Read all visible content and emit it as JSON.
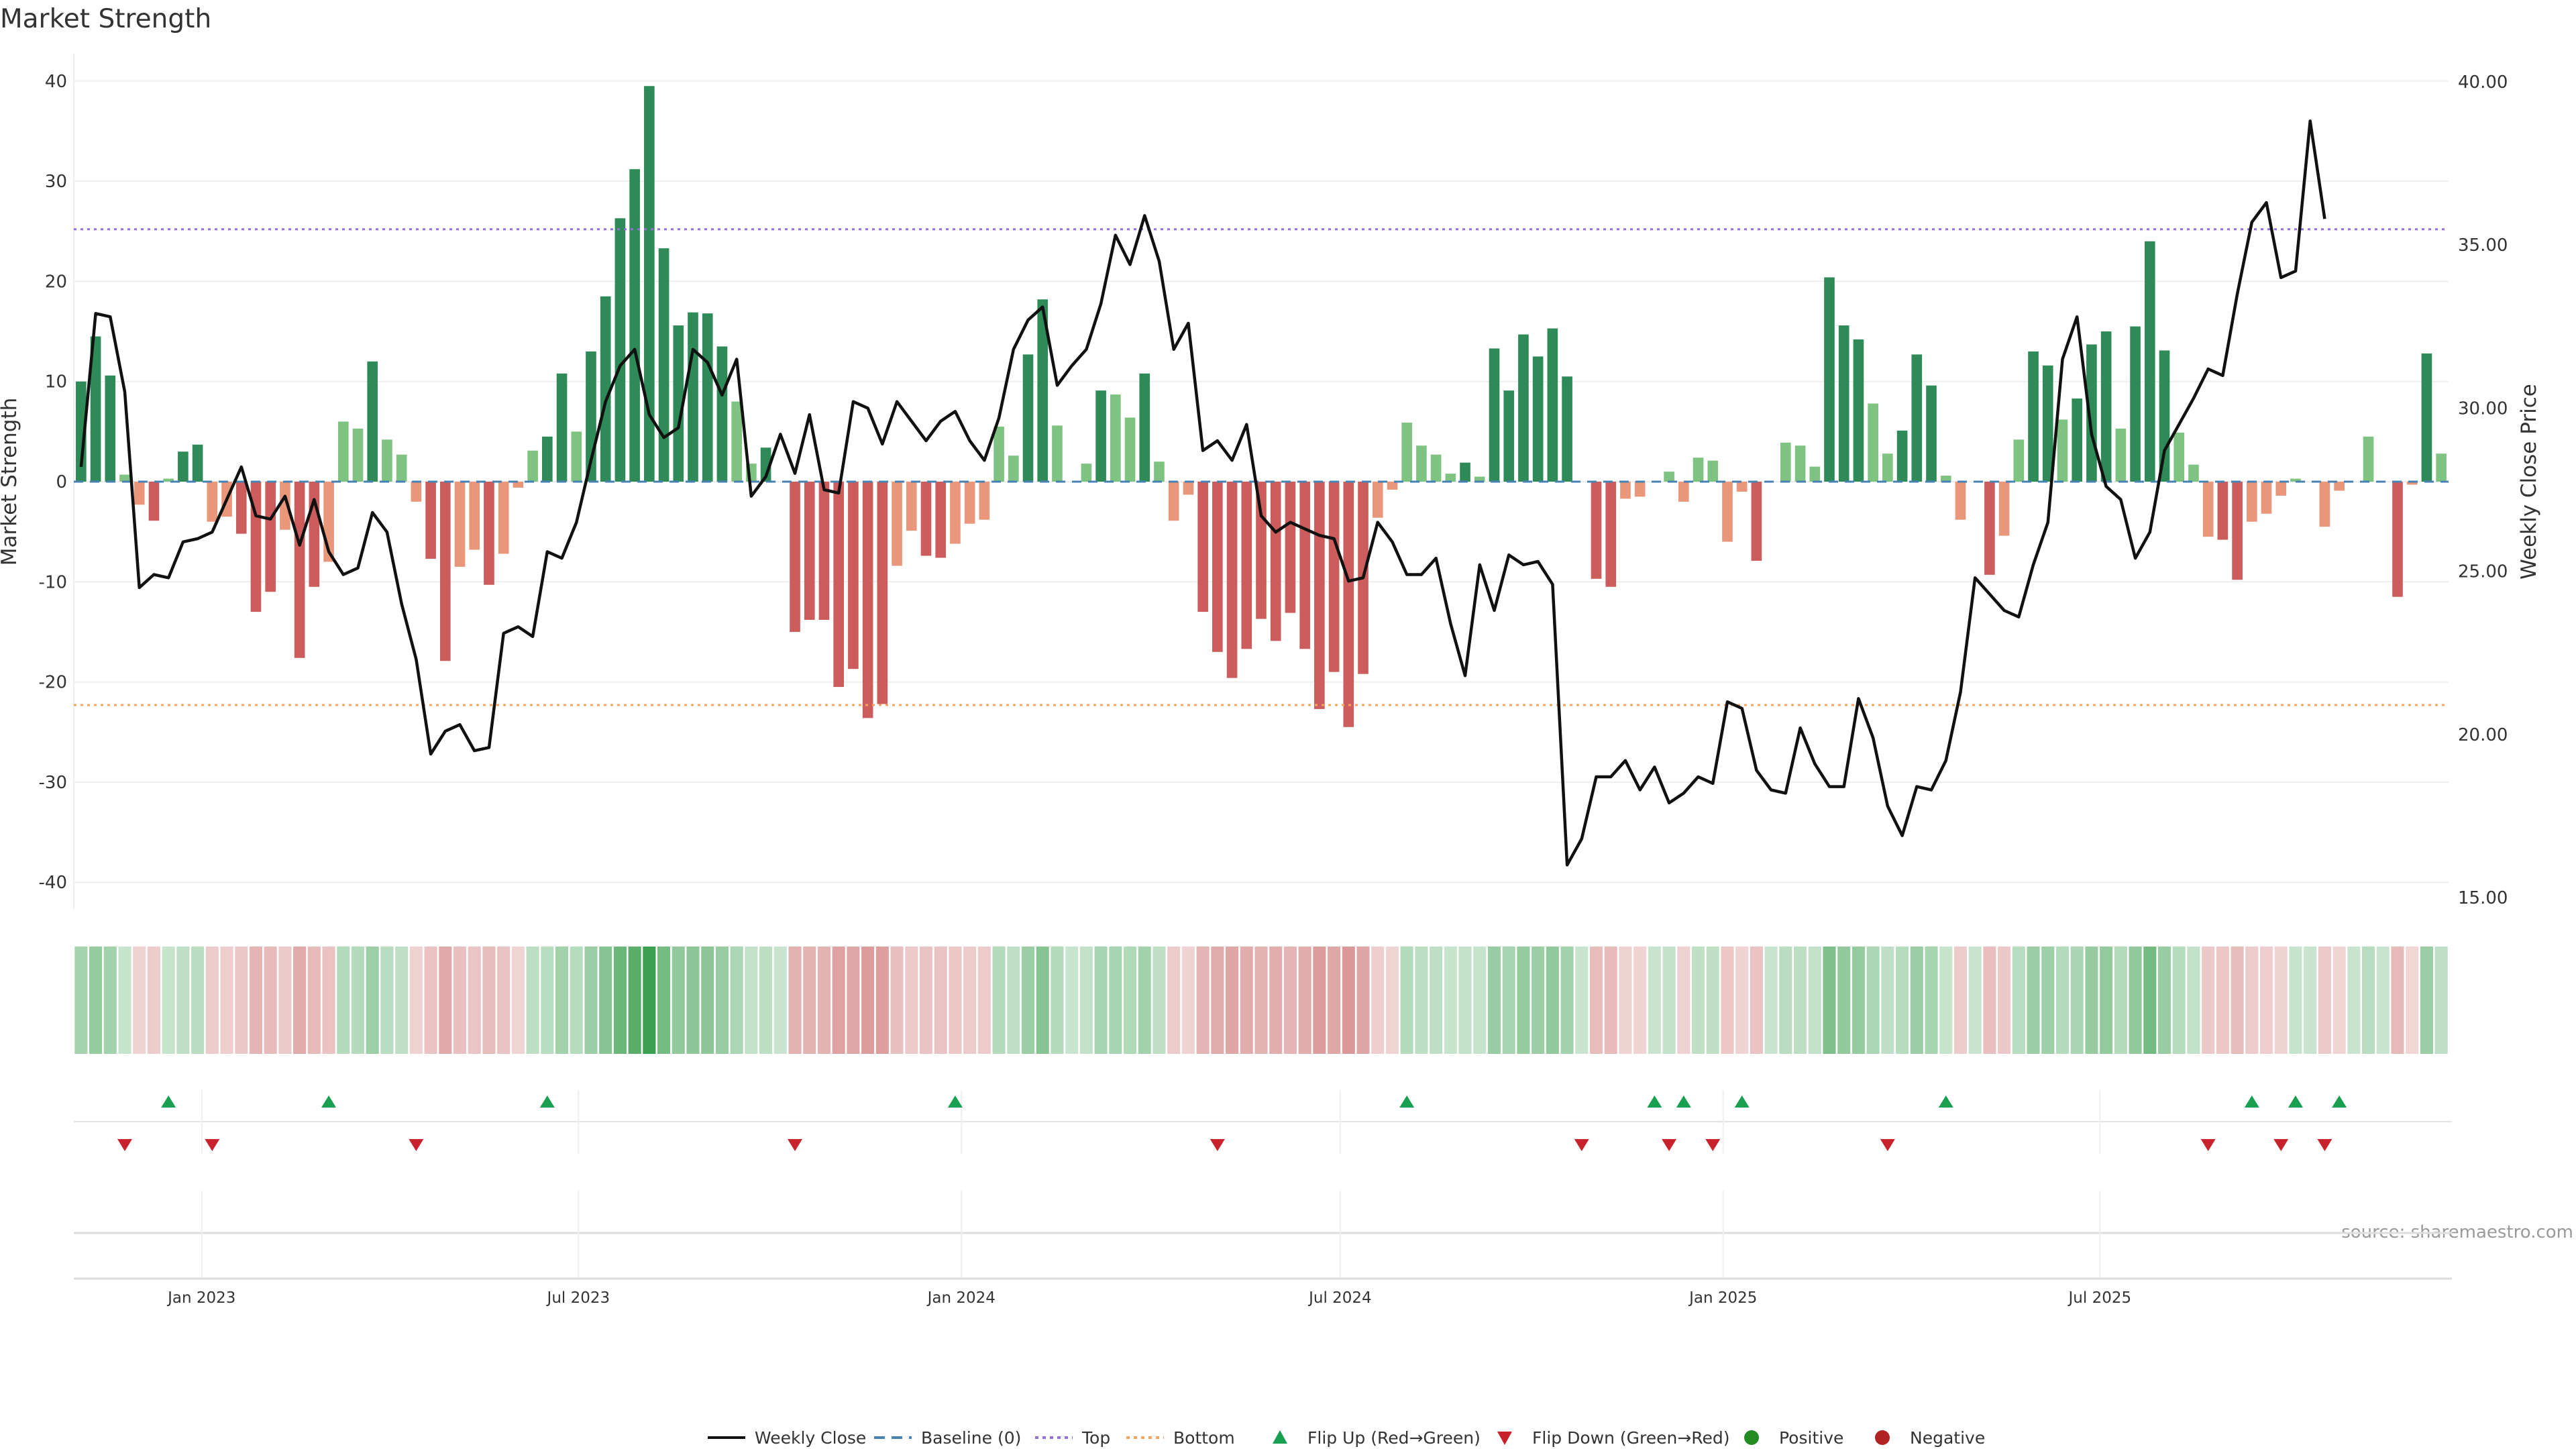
{
  "chart_data": {
    "type": "bar",
    "title": "Market Strength",
    "ylabel": "Market Strength",
    "y2label": "Weekly Close Price",
    "source": "source: sharemaestro.com",
    "ylim": [
      -43,
      43
    ],
    "y2lim": [
      14.5,
      41
    ],
    "x_start": "2022-11-04",
    "yticks": [
      "40",
      "30",
      "20",
      "10",
      "0",
      "-10",
      "-20",
      "-30",
      "-40"
    ],
    "y2ticks": [
      "40.00",
      "35.00",
      "30.00",
      "25.00",
      "20.00",
      "15.00"
    ],
    "xticks": [
      {
        "date": "2023-01-01",
        "label": "Jan 2023"
      },
      {
        "date": "2023-07-01",
        "label": "Jul 2023"
      },
      {
        "date": "2024-01-01",
        "label": "Jan 2024"
      },
      {
        "date": "2024-07-01",
        "label": "Jul 2024"
      },
      {
        "date": "2025-01-01",
        "label": "Jan 2025"
      },
      {
        "date": "2025-07-01",
        "label": "Jul 2025"
      }
    ],
    "top_line": 25.2,
    "bottom_line": -22.3,
    "strength": [
      10,
      14.5,
      10.6,
      0.7,
      -2.3,
      -3.9,
      0.3,
      3.0,
      3.7,
      -4.0,
      -3.5,
      -5.2,
      -13.0,
      -11.0,
      -4.8,
      -17.6,
      -10.5,
      -8.0,
      6.0,
      5.3,
      12.0,
      4.2,
      2.7,
      -2.0,
      -7.7,
      -17.9,
      -8.5,
      -6.8,
      -10.3,
      -7.2,
      -0.6,
      3.1,
      4.5,
      10.8,
      5.0,
      13.0,
      18.5,
      26.3,
      31.2,
      39.5,
      23.3,
      15.6,
      16.9,
      16.8,
      13.5,
      8.0,
      1.8,
      3.4,
      0,
      -15.0,
      -13.8,
      -13.8,
      -20.5,
      -18.7,
      -23.6,
      -22.2,
      -8.4,
      -4.9,
      -7.4,
      -7.6,
      -6.2,
      -4.2,
      -3.8,
      5.5,
      2.6,
      12.7,
      18.2,
      5.6,
      0,
      1.8,
      9.1,
      8.7,
      6.4,
      10.8,
      2.0,
      -3.9,
      -1.3,
      -13.0,
      -17.0,
      -19.6,
      -16.7,
      -13.7,
      -15.9,
      -13.1,
      -16.7,
      -22.7,
      -19.0,
      -24.5,
      -19.2,
      -3.6,
      -0.8,
      5.9,
      3.6,
      2.7,
      0.8,
      1.9,
      0.5,
      13.3,
      9.1,
      14.7,
      12.5,
      15.3,
      10.5,
      0,
      -9.7,
      -10.5,
      -1.7,
      -1.5,
      0,
      1.0,
      -2.0,
      2.4,
      2.1,
      -6.0,
      -1.0,
      -7.9,
      0,
      3.9,
      3.6,
      1.5,
      20.4,
      15.6,
      14.2,
      7.8,
      2.8,
      5.1,
      12.7,
      9.6,
      0.6,
      -3.8,
      0,
      -9.3,
      -5.4,
      4.2,
      13.0,
      11.6,
      6.2,
      8.3,
      13.7,
      15.0,
      5.3,
      15.5,
      24.0,
      13.1,
      4.9,
      1.7,
      -5.5,
      -5.8,
      -9.8,
      -4.0,
      -3.2,
      -1.4,
      0.3,
      0,
      -4.5,
      -0.9,
      0,
      4.5,
      0,
      -11.5,
      -0.3,
      12.8,
      2.8
    ],
    "weekly_close": [
      28.2,
      32.9,
      32.8,
      30.5,
      24.5,
      24.9,
      24.8,
      25.9,
      26.0,
      26.2,
      27.2,
      28.2,
      26.7,
      26.6,
      27.3,
      25.8,
      27.2,
      25.6,
      24.9,
      25.1,
      26.8,
      26.2,
      24.0,
      22.3,
      19.4,
      20.1,
      20.3,
      19.5,
      19.6,
      23.1,
      23.3,
      23.0,
      25.6,
      25.4,
      26.5,
      28.4,
      30.2,
      31.3,
      31.8,
      29.8,
      29.1,
      29.4,
      31.8,
      31.4,
      30.4,
      31.5,
      27.3,
      27.9,
      29.2,
      28.0,
      29.8,
      27.5,
      27.4,
      30.2,
      30.0,
      28.9,
      30.2,
      29.6,
      29.0,
      29.6,
      29.9,
      29.0,
      28.4,
      29.7,
      31.8,
      32.7,
      33.1,
      30.7,
      31.3,
      31.8,
      33.2,
      35.3,
      34.4,
      35.9,
      34.5,
      31.8,
      32.6,
      28.7,
      29.0,
      28.4,
      29.5,
      26.7,
      26.2,
      26.5,
      26.3,
      26.1,
      26.0,
      24.7,
      24.8,
      26.5,
      25.9,
      24.9,
      24.9,
      25.4,
      23.4,
      21.8,
      25.2,
      23.8,
      25.5,
      25.2,
      25.3,
      24.6,
      16.0,
      16.8,
      18.7,
      18.7,
      19.2,
      18.3,
      19.0,
      17.9,
      18.2,
      18.7,
      18.5,
      21.0,
      20.8,
      18.9,
      18.3,
      18.2,
      20.2,
      19.1,
      18.4,
      18.4,
      21.1,
      19.9,
      17.8,
      16.9,
      18.4,
      18.3,
      19.2,
      21.3,
      24.8,
      24.3,
      23.8,
      23.6,
      25.2,
      26.5,
      31.5,
      32.8,
      29.2,
      27.6,
      27.2,
      25.4,
      26.2,
      28.7,
      29.5,
      30.3,
      31.2,
      31.0,
      33.5,
      35.7,
      36.3,
      34.0,
      34.2,
      38.8,
      35.8
    ],
    "flip_up": [
      "2022-12-16",
      "2023-03-03",
      "2023-06-16",
      "2023-12-29",
      "2024-08-02",
      "2024-11-29",
      "2024-12-13",
      "2025-01-10",
      "2025-04-18",
      "2025-09-12",
      "2025-10-03",
      "2025-10-24"
    ],
    "flip_down": [
      "2022-11-25",
      "2023-01-06",
      "2023-04-14",
      "2023-10-13",
      "2024-05-03",
      "2024-10-25",
      "2024-12-06",
      "2024-12-27",
      "2025-03-21",
      "2025-08-22",
      "2025-09-26",
      "2025-10-17"
    ],
    "colors": {
      "strong_pos": "#2e8b57",
      "weak_pos": "#7fc382",
      "strong_neg": "#cd5c5c",
      "weak_neg": "#e9967a",
      "baseline": "#4682b4",
      "top": "#9370db",
      "bottom": "#f4a460",
      "flip_up": "#18a050",
      "flip_down": "#c8222c",
      "line": "#111111"
    },
    "legend": [
      {
        "label": "Weekly Close",
        "kind": "line-solid",
        "color": "#111111"
      },
      {
        "label": "Baseline (0)",
        "kind": "line-dash",
        "color": "#4682b4"
      },
      {
        "label": "Top",
        "kind": "line-dot",
        "color": "#9370db"
      },
      {
        "label": "Bottom",
        "kind": "line-dot",
        "color": "#f4a460"
      },
      {
        "label": "Flip Up (Red→Green)",
        "kind": "tri-up",
        "color": "#18a050"
      },
      {
        "label": "Flip Down (Green→Red)",
        "kind": "tri-down",
        "color": "#c8222c"
      },
      {
        "label": "Positive",
        "kind": "circle",
        "color": "#228b22"
      },
      {
        "label": "Negative",
        "kind": "circle",
        "color": "#b22222"
      }
    ],
    "legend_position": "bottom-center"
  }
}
